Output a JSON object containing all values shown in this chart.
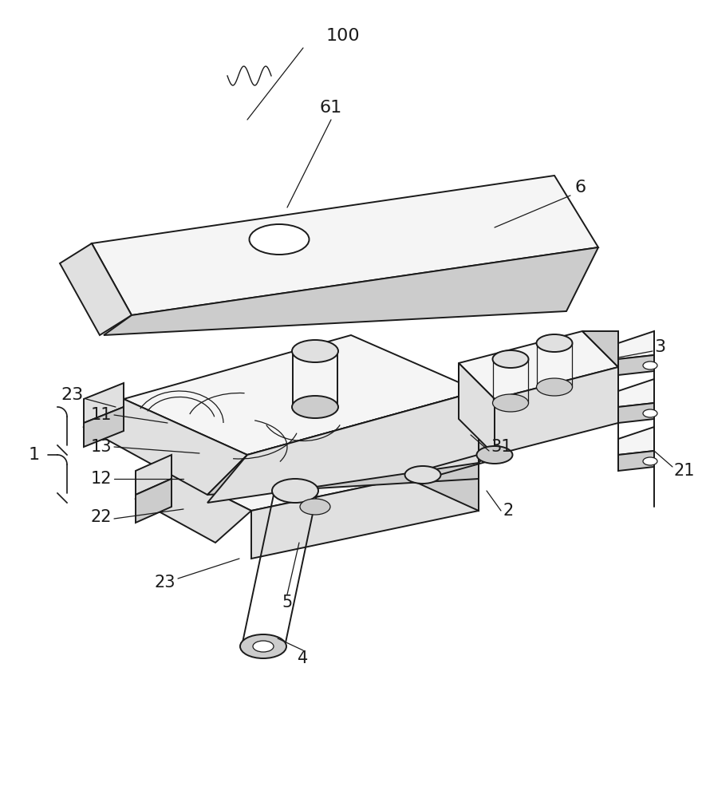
{
  "background_color": "#ffffff",
  "line_color": "#1a1a1a",
  "lw": 1.4,
  "tlw": 0.9,
  "fontsize": 14,
  "fc_light": "#f5f5f5",
  "fc_mid": "#e0e0e0",
  "fc_dark": "#cccccc",
  "fc_darker": "#b8b8b8"
}
